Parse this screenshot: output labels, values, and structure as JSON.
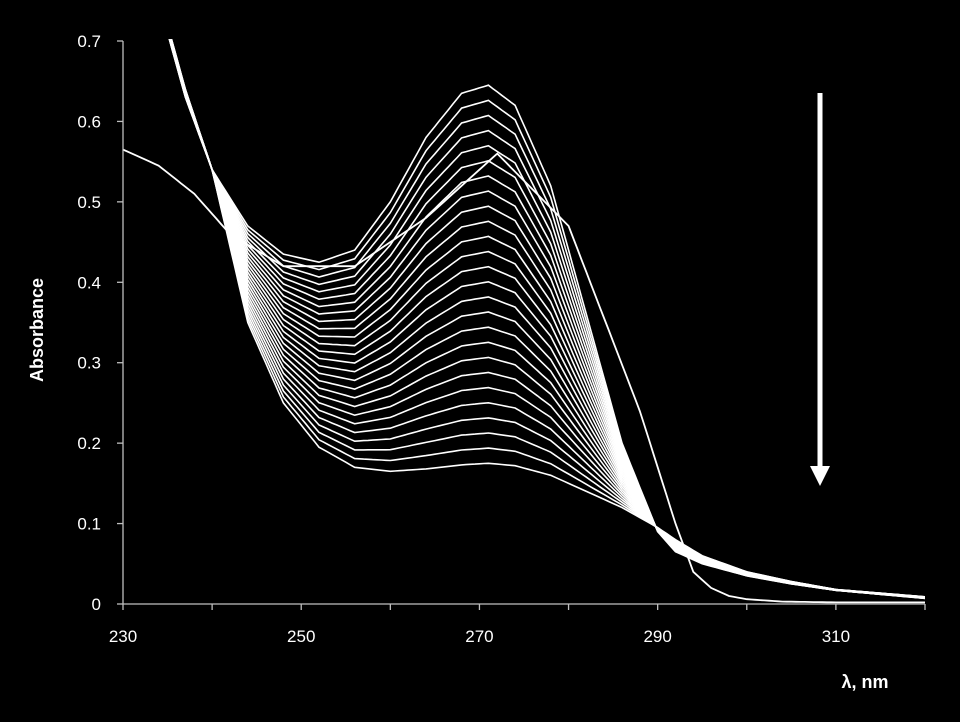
{
  "chart_data": {
    "type": "line",
    "title": "",
    "xlabel": "λ, nm",
    "ylabel": "Absorbance",
    "xlim": [
      230,
      320
    ],
    "ylim": [
      0,
      0.7
    ],
    "xticks": [
      "230",
      "250",
      "270",
      "290",
      "310"
    ],
    "yticks": [
      "0",
      "0.1",
      "0.2",
      "0.3",
      "0.4",
      "0.5",
      "0.6",
      "0.7"
    ],
    "grid": false,
    "legend": "none",
    "annotation": "downward arrow indicating decrease in absorbance over successive spectra",
    "num_spectra": 26,
    "peak_wavelength": 271,
    "peak_absorbance_first": 0.645,
    "peak_absorbance_last": 0.175,
    "min_wavelength": 252,
    "min_absorbance_first": 0.425,
    "min_absorbance_last": 0.165,
    "isosbestic_points": [
      [
        240,
        0.54
      ],
      [
        295,
        0.06
      ]
    ],
    "reference_spectrum": {
      "x": [
        230,
        234,
        238,
        242,
        248,
        256,
        264,
        272,
        280,
        288,
        292,
        294,
        296,
        298,
        300,
        304,
        310,
        320
      ],
      "y": [
        0.565,
        0.545,
        0.51,
        0.46,
        0.42,
        0.42,
        0.48,
        0.56,
        0.47,
        0.24,
        0.1,
        0.04,
        0.02,
        0.01,
        0.006,
        0.003,
        0.002,
        0.002
      ]
    },
    "colors": {
      "background": "#000000",
      "foreground": "#ffffff"
    }
  }
}
